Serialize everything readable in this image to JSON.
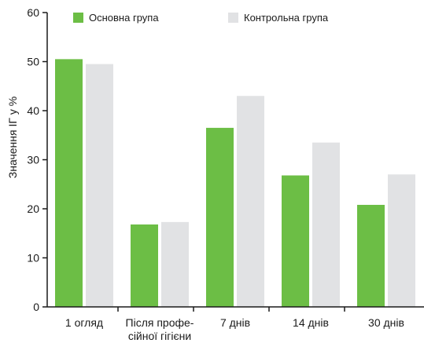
{
  "chart_data": {
    "type": "bar",
    "categories": [
      [
        "1 огляд"
      ],
      [
        "Після профе-",
        "сійної гігієни"
      ],
      [
        "7 днів"
      ],
      [
        "14 днів"
      ],
      [
        "30 днів"
      ]
    ],
    "series": [
      {
        "name": "Основна група",
        "color": "#6cbe45",
        "values": [
          50.5,
          16.8,
          36.5,
          26.8,
          20.8
        ]
      },
      {
        "name": "Контрольна група",
        "color": "#e1e2e4",
        "values": [
          49.5,
          17.3,
          43.0,
          33.5,
          27.0
        ]
      }
    ],
    "ylabel": "Значення ІГ у %",
    "xlabel": "",
    "ylim": [
      0,
      60
    ],
    "yticks": [
      0,
      10,
      20,
      30,
      40,
      50,
      60
    ],
    "grid": false,
    "legend_position": "top"
  }
}
